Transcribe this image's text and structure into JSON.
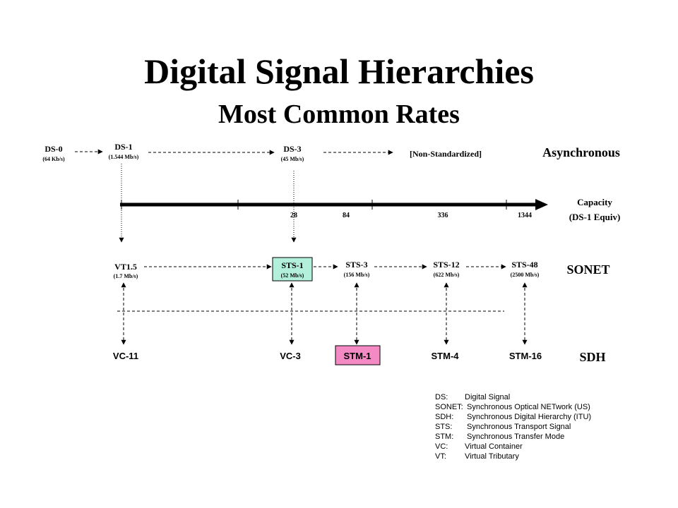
{
  "title": "Digital Signal Hierarchies",
  "subtitle": "Most Common Rates",
  "groups": {
    "async": "Asynchronous",
    "sonet": "SONET",
    "sdh": "SDH"
  },
  "axis": {
    "label_line1": "Capacity",
    "label_line2": "(DS-1 Equiv)",
    "ticks": [
      "28",
      "84",
      "336",
      "1344"
    ]
  },
  "async_nodes": {
    "ds0": {
      "name": "DS-0",
      "rate": "(64 Kb/s)"
    },
    "ds1": {
      "name": "DS-1",
      "rate": "(1.544 Mb/s)"
    },
    "ds3": {
      "name": "DS-3",
      "rate": "(45 Mb/s)"
    },
    "nonstd": {
      "name": "[Non-Standardized]"
    }
  },
  "sonet_nodes": {
    "vt15": {
      "name": "VT1.5",
      "rate": "(1.7 Mb/s)"
    },
    "sts1": {
      "name": "STS-1",
      "rate": "(52 Mb/s)"
    },
    "sts3": {
      "name": "STS-3",
      "rate": "(156 Mb/s)"
    },
    "sts12": {
      "name": "STS-12",
      "rate": "(622 Mb/s)"
    },
    "sts48": {
      "name": "STS-48",
      "rate": "(2500 Mb/s)"
    }
  },
  "sdh_nodes": {
    "vc11": {
      "name": "VC-11"
    },
    "vc3": {
      "name": "VC-3"
    },
    "stm1": {
      "name": "STM-1"
    },
    "stm4": {
      "name": "STM-4"
    },
    "stm16": {
      "name": "STM-16"
    }
  },
  "legend": [
    {
      "abbr": "DS:",
      "desc": "Digital Signal"
    },
    {
      "abbr": "SONET:",
      "desc": "Synchronous Optical NETwork (US)"
    },
    {
      "abbr": "SDH:",
      "desc": "Synchronous Digital Hierarchy (ITU)"
    },
    {
      "abbr": "STS:",
      "desc": "Synchronous Transport Signal"
    },
    {
      "abbr": "STM:",
      "desc": "Synchronous Transfer Mode"
    },
    {
      "abbr": "VC:",
      "desc": "Virtual Container"
    },
    {
      "abbr": "VT:",
      "desc": "Virtual Tributary"
    }
  ],
  "colors": {
    "sts1_box": "#b3f0dc",
    "stm1_box": "#f48ac4"
  }
}
